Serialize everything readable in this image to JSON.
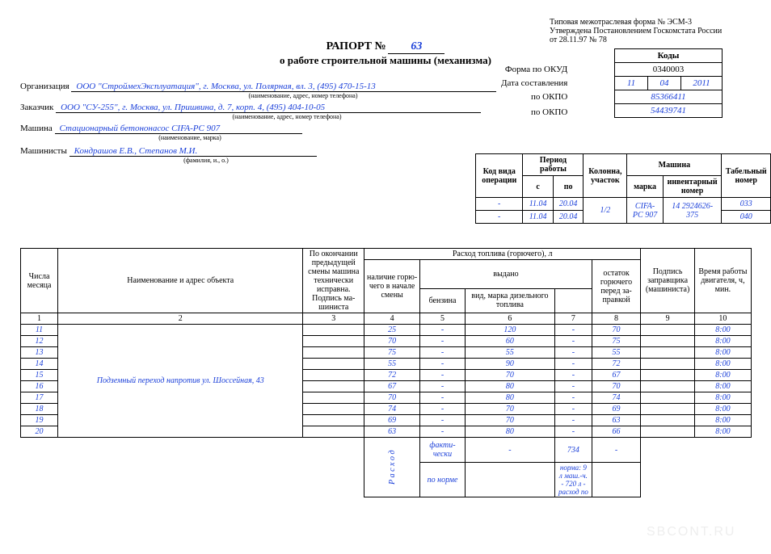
{
  "form_note": {
    "l1": "Типовая межотраслевая форма № ЭСМ-3",
    "l2": "Утверждена Постановлением Госкомстата России",
    "l3": "от 28.11.97 № 78"
  },
  "title": {
    "line1": "РАПОРТ №",
    "number": "63",
    "line2": "о работе строительной машины (механизма)"
  },
  "codes_labels": {
    "okud": "Форма по ОКУД",
    "date": "Дата составления",
    "okpo1": "по ОКПО",
    "okpo2": "по ОКПО"
  },
  "codes": {
    "header": "Коды",
    "okud": "0340003",
    "d": "11",
    "m": "04",
    "y": "2011",
    "okpo1": "85366411",
    "okpo2": "54439741"
  },
  "fields": {
    "org_label": "Организация",
    "org_value": "ООО \"СтроймехЭксплуатация\", г. Москва, ул. Полярная, вл. 3, (495) 470-15-13",
    "org_sub": "(наименование, адрес, номер телефона)",
    "cust_label": "Заказчик",
    "cust_value": "ООО \"СУ-255\", г. Москва, ул. Пришвина, д. 7, корп. 4, (495) 404-10-05",
    "cust_sub": "(наименование, адрес, номер телефона)",
    "mach_label": "Машина",
    "mach_value": "Стационарный бетононасос CIFA-PC 907",
    "mach_sub": "(наименование, марка)",
    "oper_label": "Машинисты",
    "oper_value": "Кондрашов Е.В., Степанов М.И.",
    "oper_sub": "(фамилия, и., о.)"
  },
  "period": {
    "h_kod": "Код вида операции",
    "h_period": "Период работы",
    "h_s": "с",
    "h_po": "по",
    "h_kol": "Колонна, участок",
    "h_mash": "Машина",
    "h_marka": "марка",
    "h_inv": "инвентарный номер",
    "h_tab": "Табельный номер",
    "r1": {
      "kod": "-",
      "s": "11.04",
      "po": "20.04",
      "marka": "CIFA-PC 907",
      "inv": "14 2924626-375",
      "tab": "033"
    },
    "r2": {
      "kod": "-",
      "s": "11.04",
      "po": "20.04",
      "tab": "040"
    },
    "kol": "1/2"
  },
  "main": {
    "h_day": "Числа месяца",
    "h_obj": "Наименование и адрес объекта",
    "h_prev": "По окончании предыдущей смены машина технически исправна. Подпись ма-шиниста",
    "h_fuel": "Расход топлива (горючего), л",
    "h_begin": "наличие горю-чего в начале смены",
    "h_issued": "выдано",
    "h_type": "вид, марка дизельного топлива",
    "h_benz": "бензина",
    "h_rest": "остаток горючего перед за-правкой",
    "h_sign": "Подпись заправщика (машиниста)",
    "h_time": "Время работы двигателя, ч, мин.",
    "nums": {
      "c1": "1",
      "c2": "2",
      "c3": "3",
      "c4": "4",
      "c5": "5",
      "c6": "6",
      "c7": "7",
      "c8": "8",
      "c9": "9",
      "c10": "10"
    },
    "object": "Подземный переход напротив ул. Шоссейная, 43",
    "rows": [
      {
        "d": "11",
        "c4": "25",
        "c5": "-",
        "c6": "120",
        "c7": "-",
        "c8": "70",
        "c10": "8:00"
      },
      {
        "d": "12",
        "c4": "70",
        "c5": "-",
        "c6": "60",
        "c7": "-",
        "c8": "75",
        "c10": "8:00"
      },
      {
        "d": "13",
        "c4": "75",
        "c5": "-",
        "c6": "55",
        "c7": "-",
        "c8": "55",
        "c10": "8:00"
      },
      {
        "d": "14",
        "c4": "55",
        "c5": "-",
        "c6": "90",
        "c7": "-",
        "c8": "72",
        "c10": "8:00"
      },
      {
        "d": "15",
        "c4": "72",
        "c5": "-",
        "c6": "70",
        "c7": "-",
        "c8": "67",
        "c10": "8:00"
      },
      {
        "d": "16",
        "c4": "67",
        "c5": "-",
        "c6": "80",
        "c7": "-",
        "c8": "70",
        "c10": "8:00"
      },
      {
        "d": "17",
        "c4": "70",
        "c5": "-",
        "c6": "80",
        "c7": "-",
        "c8": "74",
        "c10": "8:00"
      },
      {
        "d": "18",
        "c4": "74",
        "c5": "-",
        "c6": "70",
        "c7": "-",
        "c8": "69",
        "c10": "8:00"
      },
      {
        "d": "19",
        "c4": "69",
        "c5": "-",
        "c6": "70",
        "c7": "-",
        "c8": "63",
        "c10": "8:00"
      },
      {
        "d": "20",
        "c4": "63",
        "c5": "-",
        "c6": "80",
        "c7": "-",
        "c8": "66",
        "c10": "8:00"
      }
    ],
    "sum": {
      "rashod": "Р а с х о д",
      "fact_label": "факти-чески",
      "fact_c5": "-",
      "fact_c6": "734",
      "fact_c7": "-",
      "norm_label": "по норме",
      "norm_c6": "норма: 9 л маш.-ч. - 720 л - расход по"
    }
  },
  "watermark": "SBCONT.RU"
}
